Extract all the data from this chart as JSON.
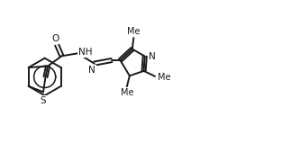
{
  "bg_color": "#ffffff",
  "line_color": "#1a1a1a",
  "line_width": 1.4,
  "font_size": 7.5,
  "fig_width": 3.13,
  "fig_height": 1.59,
  "dpi": 100,
  "xlim": [
    0.0,
    10.5
  ],
  "ylim": [
    3.5,
    8.5
  ]
}
